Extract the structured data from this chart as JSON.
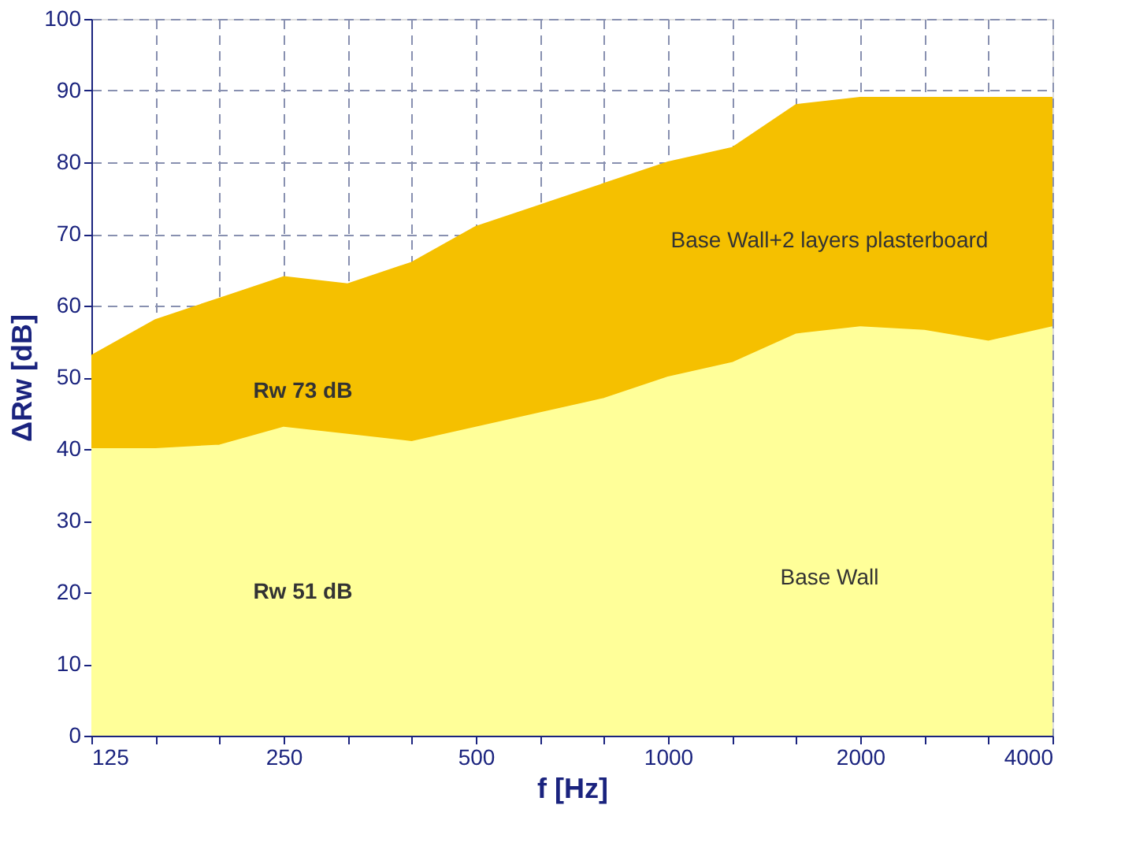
{
  "chart_data": {
    "type": "area",
    "xlabel": "f [Hz]",
    "ylabel": "ΔRw [dB]",
    "categories": [
      "125",
      null,
      null,
      "250",
      null,
      null,
      "500",
      null,
      null,
      "1000",
      null,
      null,
      "2000",
      null,
      null,
      "4000"
    ],
    "series": [
      {
        "name": "Base Wall+2 layers plasterboard",
        "color": "#f5c000",
        "values": [
          53,
          58,
          61,
          64,
          63,
          66,
          71,
          74,
          77,
          80,
          82,
          88,
          89,
          89,
          89,
          89
        ]
      },
      {
        "name": "Base Wall",
        "color": "#ffff99",
        "values": [
          40,
          40,
          40.5,
          43,
          42,
          41,
          43,
          45,
          47,
          50,
          52,
          56,
          57,
          56.5,
          55,
          57
        ]
      }
    ],
    "ylim": [
      0,
      100
    ],
    "yticks": [
      0,
      10,
      20,
      30,
      40,
      50,
      60,
      70,
      80,
      90,
      100
    ],
    "grid": true,
    "annotations": [
      "Rw 73 dB",
      "Rw 51 dB"
    ]
  }
}
